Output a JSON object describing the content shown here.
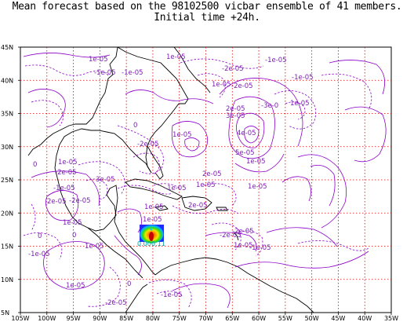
{
  "title": {
    "line1": "Mean forecast based on the 98102500 vicbar ensemble of 41 members.",
    "line2": "Initial time +24h."
  },
  "colors": {
    "contour": "#8b00c8",
    "grid": "#e00000",
    "coast": "#000000",
    "label": "#7a1fb0"
  },
  "map": {
    "lat_ticks": [
      "45N",
      "40N",
      "35N",
      "30N",
      "25N",
      "20N",
      "15N",
      "10N",
      "5N"
    ],
    "lon_ticks": [
      "105W",
      "100W",
      "95W",
      "90W",
      "85W",
      "80W",
      "75W",
      "70W",
      "65W",
      "60W",
      "55W",
      "50W",
      "45W",
      "40W",
      "35W"
    ],
    "grid_lons_deg": [
      -100,
      -95,
      -90,
      -85,
      -80,
      -75,
      -70,
      -65,
      -60,
      -55,
      -50,
      -45,
      -40
    ],
    "grid_lats_deg": [
      40,
      35,
      30,
      25,
      20,
      15,
      10
    ]
  },
  "contour_labels": [
    {
      "text": "1e-05"
    },
    {
      "text": "1e-05"
    },
    {
      "text": "-1e-05"
    },
    {
      "text": "-1e-05"
    },
    {
      "text": "-1e-05"
    },
    {
      "text": "-2e-05"
    },
    {
      "text": "-1e-05"
    },
    {
      "text": "-2e-05"
    },
    {
      "text": "1e-05"
    },
    {
      "text": "2e-05"
    },
    {
      "text": "-3e-0"
    },
    {
      "text": "1e-05"
    },
    {
      "text": "3e-05"
    },
    {
      "text": "4e-05"
    },
    {
      "text": "5e-05"
    },
    {
      "text": "1e-05"
    },
    {
      "text": "0"
    },
    {
      "text": "1e-05"
    },
    {
      "text": "-2e-05"
    },
    {
      "text": "2e-05"
    },
    {
      "text": "1e-05"
    },
    {
      "text": "-1e-05"
    },
    {
      "text": "0"
    },
    {
      "text": "1e-05"
    },
    {
      "text": "3e-05"
    },
    {
      "text": "-1e-05"
    },
    {
      "text": "2e-05"
    },
    {
      "text": "-2e-05"
    },
    {
      "text": "1e-05"
    },
    {
      "text": "1e-05"
    },
    {
      "text": "0"
    },
    {
      "text": "1e-05"
    },
    {
      "text": "-2e-05"
    },
    {
      "text": "1e-05"
    },
    {
      "text": "-1e-05"
    },
    {
      "text": "1e-05"
    },
    {
      "text": "-1e-05"
    },
    {
      "text": "-2e-05"
    },
    {
      "text": "2e-05"
    },
    {
      "text": "-2e-05"
    },
    {
      "text": "-1e-05"
    },
    {
      "text": "0"
    },
    {
      "text": "1e-05"
    },
    {
      "text": "0"
    },
    {
      "text": "-2e-05"
    },
    {
      "text": "1e-05"
    }
  ],
  "shaded_labels": [
    "0.00",
    "0.11"
  ]
}
